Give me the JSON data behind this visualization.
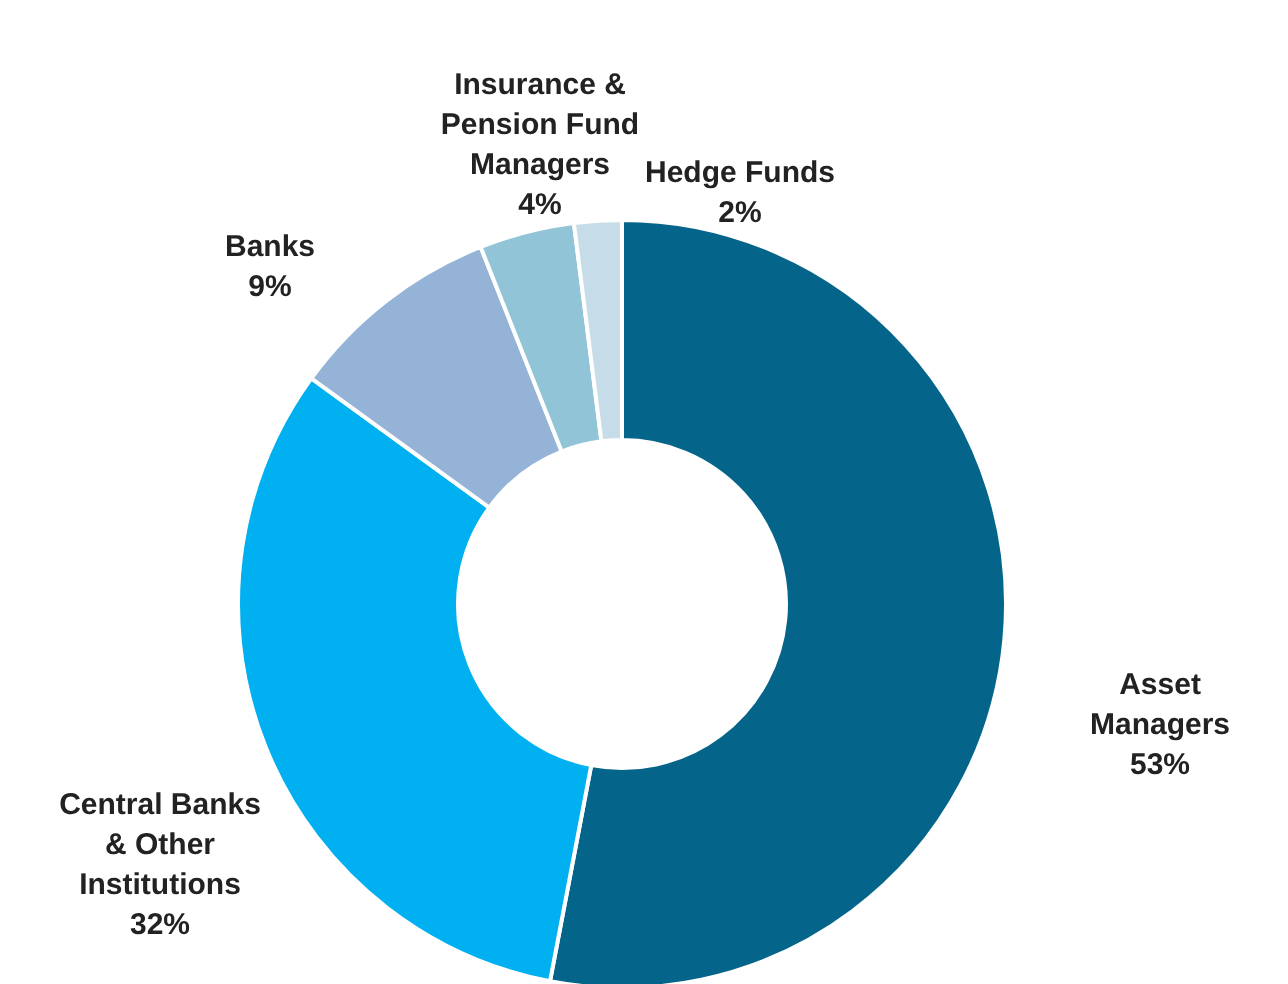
{
  "chart_data": {
    "type": "donut",
    "categories": [
      "Asset Managers",
      "Central Banks & Other Institutions",
      "Banks",
      "Insurance & Pension Fund Managers",
      "Hedge Funds"
    ],
    "values": [
      53,
      32,
      9,
      4,
      2
    ],
    "value_labels": [
      "53%",
      "32%",
      "9%",
      "4%",
      "2%"
    ],
    "colors": [
      "#04648a",
      "#00b0f0",
      "#95b3d7",
      "#92c4d8",
      "#c6dde9"
    ]
  }
}
